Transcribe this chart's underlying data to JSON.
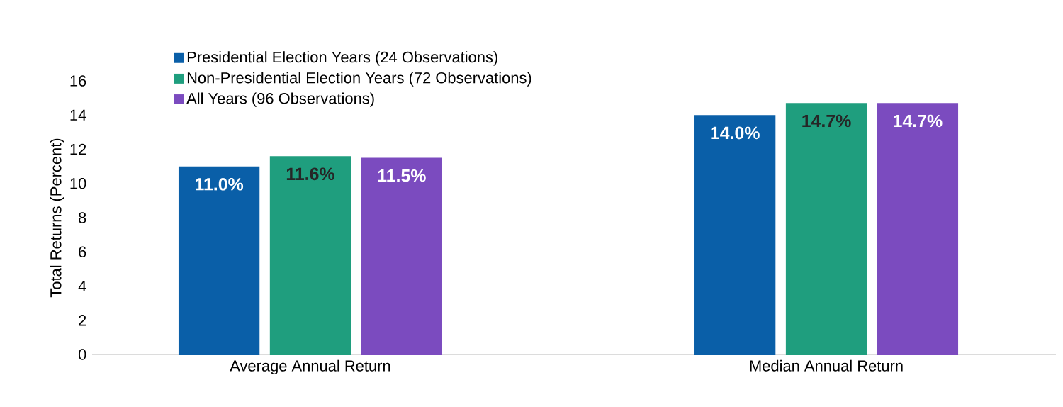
{
  "chart_data": {
    "type": "bar",
    "ylabel": "Total Returns (Percent)",
    "categories": [
      "Average Annual Return",
      "Median Annual Return"
    ],
    "series": [
      {
        "name": "Presidential Election Years (24 Observations)",
        "color": "#0a5fa8",
        "values": [
          11.0,
          14.0
        ],
        "value_labels": [
          "11.0%",
          "14.0%"
        ]
      },
      {
        "name": "Non-Presidential Election Years (72 Observations)",
        "color": "#1f9e7e",
        "values": [
          11.6,
          14.7
        ],
        "value_labels": [
          "11.6%",
          "14.7%"
        ]
      },
      {
        "name": "All Years (96 Observations)",
        "color": "#7b4bbf",
        "values": [
          11.5,
          14.7
        ],
        "value_labels": [
          "11.5%",
          "14.7%"
        ]
      }
    ],
    "ylim": [
      0,
      16
    ],
    "yticks": [
      0,
      2,
      4,
      6,
      8,
      10,
      12,
      14,
      16
    ],
    "grid": false,
    "legend": "top left"
  }
}
